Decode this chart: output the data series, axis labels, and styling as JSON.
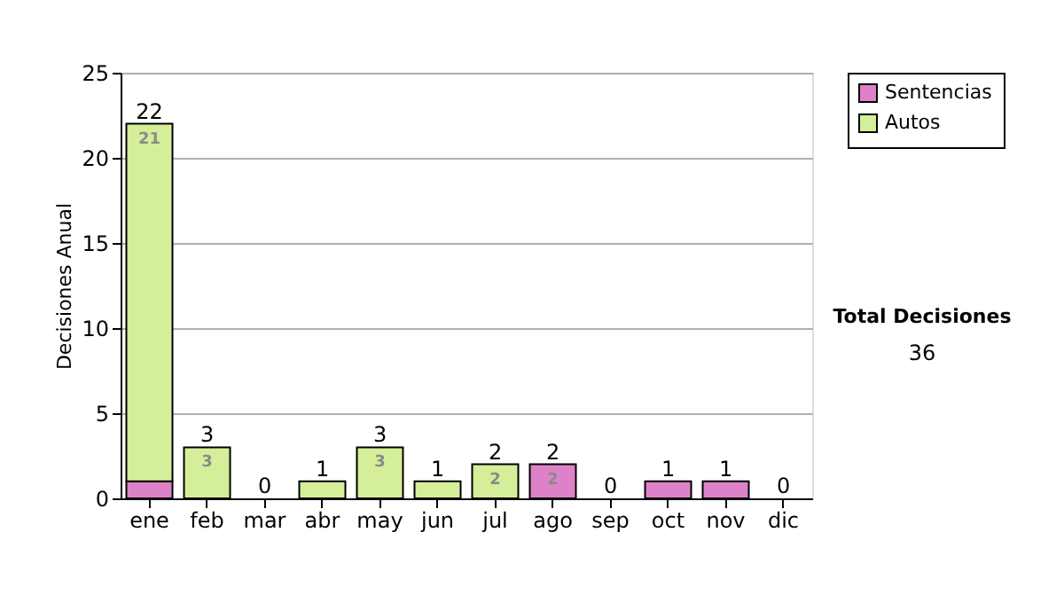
{
  "chart_data": {
    "type": "bar",
    "stacked": true,
    "ylabel": "Decisiones Anual",
    "categories": [
      "ene",
      "feb",
      "mar",
      "abr",
      "may",
      "jun",
      "jul",
      "ago",
      "sep",
      "oct",
      "nov",
      "dic"
    ],
    "series": [
      {
        "name": "Sentencias",
        "color": "#dd82c8",
        "values": [
          1,
          0,
          0,
          0,
          0,
          0,
          0,
          2,
          0,
          1,
          1,
          0
        ],
        "value_labels": [
          null,
          null,
          null,
          null,
          null,
          null,
          null,
          "2",
          null,
          null,
          null,
          null
        ]
      },
      {
        "name": "Autos",
        "color": "#d5ee9a",
        "values": [
          21,
          3,
          0,
          1,
          3,
          1,
          2,
          0,
          0,
          0,
          0,
          0
        ],
        "value_labels": [
          "21",
          "3",
          null,
          null,
          "3",
          null,
          "2",
          null,
          null,
          null,
          null,
          null
        ]
      }
    ],
    "totals": [
      "22",
      "3",
      "0",
      "1",
      "3",
      "1",
      "2",
      "2",
      "0",
      "1",
      "1",
      "0"
    ],
    "ylim": [
      0,
      25
    ],
    "yticks": [
      0,
      5,
      10,
      15,
      20,
      25
    ],
    "grid": "y",
    "legend": "right",
    "annotations": [
      "Total Decisiones",
      "36"
    ]
  }
}
